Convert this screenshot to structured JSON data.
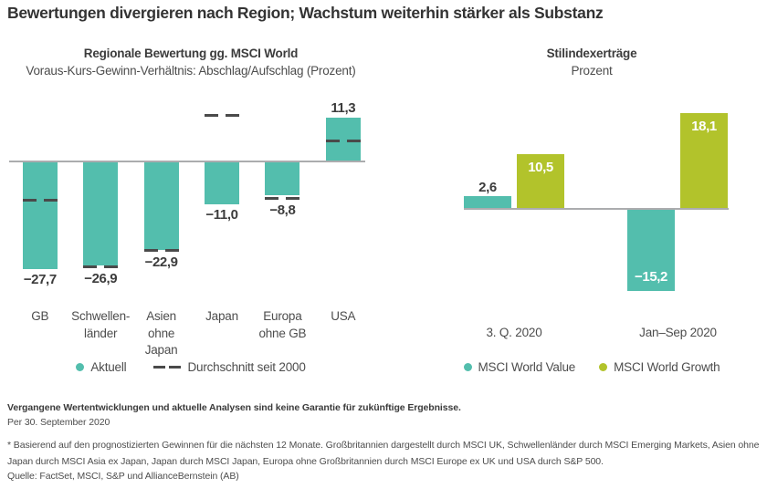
{
  "title": "Bewertungen divergieren nach Region; Wachstum weiterhin stärker als Substanz",
  "left_panel": {
    "title": "Regionale Bewertung gg. MSCI World",
    "subtitle": "Voraus-Kurs-Gewinn-Verhältnis: Abschlag/Aufschlag (Prozent)",
    "legend": [
      {
        "type": "dot",
        "color": "#53BEAD",
        "label": "Aktuell"
      },
      {
        "type": "dash",
        "color": "#4A4A4A",
        "label": "Durchschnitt seit 2000"
      }
    ]
  },
  "right_panel": {
    "title": "Stilindexerträge",
    "subtitle": "Prozent",
    "legend": [
      {
        "type": "dot",
        "color": "#53BEAD",
        "label": "MSCI World Value"
      },
      {
        "type": "dot",
        "color": "#B2C32B",
        "label": "MSCI World Growth"
      }
    ]
  },
  "chart_data": [
    {
      "type": "bar",
      "title": "Regionale Bewertung gg. MSCI World",
      "subtitle": "Voraus-Kurs-Gewinn-Verhältnis: Abschlag/Aufschlag (Prozent)",
      "unit": "Prozent",
      "categories": [
        "GB",
        "Schwellenländer",
        "Asien ohne Japan",
        "Japan",
        "Europa ohne GB",
        "USA"
      ],
      "category_lines": [
        [
          "GB"
        ],
        [
          "Schwellen-",
          "länder"
        ],
        [
          "Asien",
          "ohne",
          "Japan"
        ],
        [
          "Japan"
        ],
        [
          "Europa",
          "ohne GB"
        ],
        [
          "USA"
        ]
      ],
      "series": [
        {
          "name": "Aktuell",
          "style": "bar",
          "color": "#53BEAD",
          "values": [
            -27.7,
            -26.9,
            -22.9,
            -11.0,
            -8.8,
            11.3
          ],
          "labels": [
            "−27,7",
            "−26,9",
            "−22,9",
            "−11,0",
            "−8,8",
            "11,3"
          ]
        },
        {
          "name": "Durchschnitt seit 2000",
          "style": "dashed-level",
          "color": "#4A4A4A",
          "values": [
            -10.0,
            -27.1,
            -22.9,
            11.9,
            -9.5,
            5.3
          ],
          "note": "Werte aus gestrichelten Markierungen abgelesen (geschätzt)"
        }
      ],
      "ylim": [
        -30,
        14
      ],
      "grid": false,
      "legend_position": "bottom"
    },
    {
      "type": "bar",
      "title": "Stilindexerträge",
      "subtitle": "Prozent",
      "unit": "Prozent",
      "categories": [
        "3. Q. 2020",
        "Jan–Sep 2020"
      ],
      "series": [
        {
          "name": "MSCI World Value",
          "style": "bar",
          "color": "#53BEAD",
          "values": [
            2.6,
            -15.2
          ],
          "labels": [
            "2,6",
            "−15,2"
          ]
        },
        {
          "name": "MSCI World Growth",
          "style": "bar",
          "color": "#B2C32B",
          "values": [
            10.5,
            18.1
          ],
          "labels": [
            "10,5",
            "18,1"
          ]
        }
      ],
      "ylim": [
        -18,
        20
      ],
      "grid": false,
      "legend_position": "bottom"
    }
  ],
  "footer": {
    "disclaimer": "Vergangene Wertentwicklungen und aktuelle Analysen sind keine Garantie für zukünftige Ergebnisse.",
    "as_of": "Per 30. September 2020",
    "footnote": "* Basierend auf den prognostizierten Gewinnen für die nächsten 12 Monate. Großbritannien dargestellt durch MSCI UK, Schwellenländer durch MSCI Emerging Markets, Asien ohne Japan durch MSCI Asia ex Japan, Japan durch MSCI Japan, Europa ohne Großbritannien durch MSCI Europe ex UK und USA durch S&P 500.",
    "source": "Quelle: FactSet, MSCI, S&P und AllianceBernstein (AB)"
  },
  "colors": {
    "teal": "#53BEAD",
    "green": "#B2C32B",
    "baseline": "#ABACAE",
    "dash": "#4A4A4A",
    "text_dark": "#3C3C3C",
    "text_gray": "#4D4D4D"
  }
}
